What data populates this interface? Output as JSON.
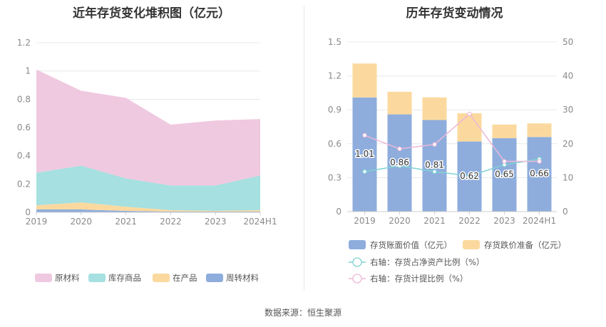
{
  "source_label": "数据来源：",
  "source_name": "恒生聚源",
  "chart_data": [
    {
      "type": "area",
      "stacked": true,
      "title": "近年存货变化堆积图（亿元）",
      "categories": [
        "2019",
        "2020",
        "2021",
        "2022",
        "2023",
        "2024H1"
      ],
      "ylim": [
        0,
        1.2
      ],
      "yticks": [
        "0",
        "0.2",
        "0.4",
        "0.6",
        "0.8",
        "1",
        "1.2"
      ],
      "grid": true,
      "legend_position": "bottom",
      "series": [
        {
          "name": "周转材料",
          "color": "#8eaddd",
          "values": [
            0.02,
            0.02,
            0.01,
            0.005,
            0.005,
            0.005
          ]
        },
        {
          "name": "在产品",
          "color": "#fbd99e",
          "values": [
            0.03,
            0.05,
            0.03,
            0.01,
            0.005,
            0.01
          ]
        },
        {
          "name": "库存商品",
          "color": "#a6e0e0",
          "values": [
            0.23,
            0.26,
            0.2,
            0.175,
            0.18,
            0.245
          ]
        },
        {
          "name": "原材料",
          "color": "#efc9e0",
          "values": [
            0.73,
            0.53,
            0.57,
            0.43,
            0.46,
            0.4
          ]
        }
      ],
      "legend_order": [
        "原材料",
        "库存商品",
        "在产品",
        "周转材料"
      ]
    },
    {
      "type": "bar",
      "stacked": true,
      "title": "历年存货变动情况",
      "categories": [
        "2019",
        "2020",
        "2021",
        "2022",
        "2023",
        "2024H1"
      ],
      "ylim": [
        0,
        1.5
      ],
      "yticks": [
        "0",
        "0.3",
        "0.6",
        "0.9",
        "1.2",
        "1.5"
      ],
      "y2lim": [
        0,
        50
      ],
      "y2ticks": [
        "0",
        "10",
        "20",
        "30",
        "40",
        "50"
      ],
      "grid": true,
      "legend_position": "bottom",
      "series": [
        {
          "name": "存货账面价值（亿元）",
          "color": "#8eaddd",
          "axis": "left",
          "kind": "bar",
          "values": [
            1.01,
            0.86,
            0.81,
            0.62,
            0.65,
            0.66
          ],
          "labels": [
            "1.01",
            "0.86",
            "0.81",
            "0.62",
            "0.65",
            "0.66"
          ]
        },
        {
          "name": "存货跌价准备（亿元）",
          "color": "#fbd99e",
          "axis": "left",
          "kind": "bar",
          "values": [
            0.3,
            0.2,
            0.2,
            0.25,
            0.12,
            0.12
          ]
        },
        {
          "name": "右轴：存货占净资产比例（%）",
          "color": "#7fd3d3",
          "axis": "right",
          "kind": "line",
          "values": [
            11.8,
            13.5,
            11.8,
            10.5,
            13.8,
            15.5
          ]
        },
        {
          "name": "右轴：存货计提比例（%）",
          "color": "#edb8d8",
          "axis": "right",
          "kind": "line",
          "values": [
            22.5,
            18.5,
            19.8,
            28.8,
            14.8,
            14.8
          ]
        }
      ]
    }
  ]
}
